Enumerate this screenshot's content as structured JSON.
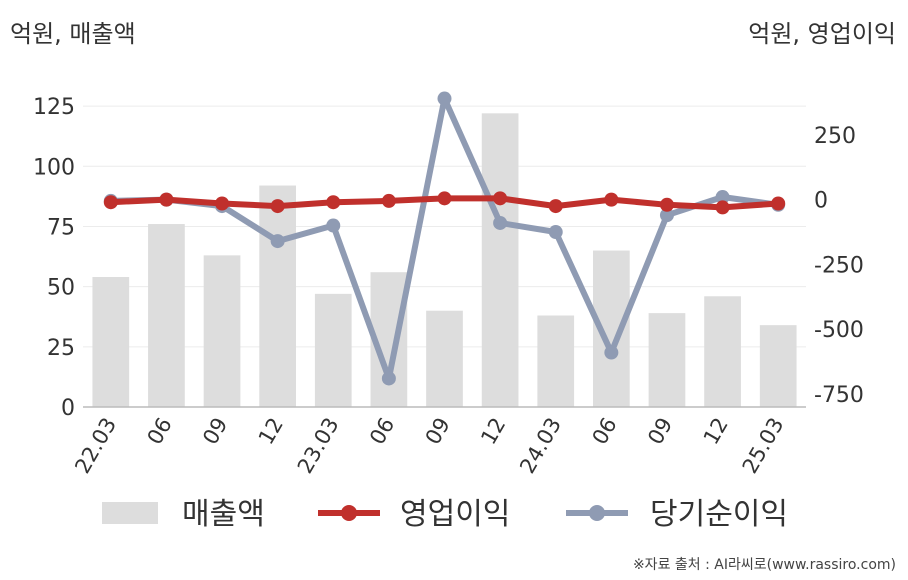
{
  "left_axis_unit": "억원, 매출액",
  "right_axis_unit": "억원, 영업이익",
  "source_note": "※자료 출처 : AI라씨로(www.rassiro.com)",
  "colors": {
    "revenue": "#dddddd",
    "operating_profit": "#c0302c",
    "net_profit": "#8f9bb3"
  },
  "chart_data": {
    "type": "bar",
    "categories": [
      "22.03",
      "06",
      "09",
      "12",
      "23.03",
      "06",
      "09",
      "12",
      "24.03",
      "06",
      "09",
      "12",
      "25.03"
    ],
    "left_axis": {
      "ylim": [
        0,
        140
      ],
      "ticks": [
        0,
        25,
        50,
        75,
        100,
        125
      ]
    },
    "right_axis": {
      "ylim": [
        -800,
        500
      ],
      "ticks": [
        -750,
        -500,
        -250,
        0,
        250
      ]
    },
    "series": [
      {
        "name": "매출액",
        "type": "bar",
        "axis": "left",
        "values": [
          54,
          76,
          63,
          92,
          47,
          56,
          40,
          122,
          38,
          65,
          39,
          46,
          34
        ]
      },
      {
        "name": "영업이익",
        "type": "line",
        "axis": "right",
        "values": [
          -10,
          0,
          -15,
          -25,
          -10,
          -5,
          5,
          5,
          -25,
          0,
          -20,
          -30,
          -15
        ]
      },
      {
        "name": "당기순이익",
        "type": "line",
        "axis": "right",
        "values": [
          -5,
          0,
          -25,
          -160,
          -100,
          -690,
          390,
          -90,
          -125,
          -590,
          -60,
          10,
          -20
        ]
      }
    ]
  }
}
